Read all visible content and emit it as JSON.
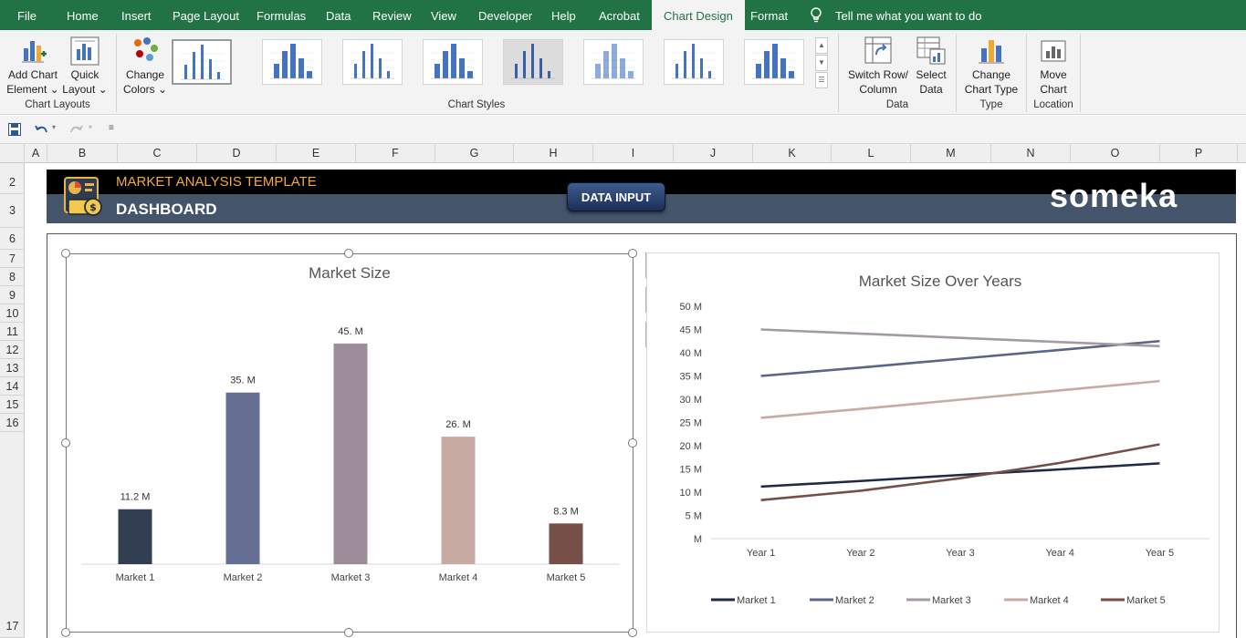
{
  "tabs": [
    {
      "label": "File"
    },
    {
      "label": "Home"
    },
    {
      "label": "Insert"
    },
    {
      "label": "Page Layout"
    },
    {
      "label": "Formulas"
    },
    {
      "label": "Data"
    },
    {
      "label": "Review"
    },
    {
      "label": "View"
    },
    {
      "label": "Developer"
    },
    {
      "label": "Help"
    },
    {
      "label": "Acrobat"
    },
    {
      "label": "Chart Design"
    },
    {
      "label": "Format"
    }
  ],
  "tell_me": "Tell me what you want to do",
  "ribbon": {
    "add_chart_element": [
      "Add Chart",
      "Element"
    ],
    "quick_layout": [
      "Quick",
      "Layout"
    ],
    "change_colors": [
      "Change",
      "Colors"
    ],
    "switch_row_col": [
      "Switch Row/",
      "Column"
    ],
    "select_data": [
      "Select",
      "Data"
    ],
    "change_chart_type": [
      "Change",
      "Chart Type"
    ],
    "move_chart": [
      "Move",
      "Chart"
    ],
    "groups": {
      "chart_layouts": "Chart Layouts",
      "chart_styles": "Chart Styles",
      "data": "Data",
      "type": "Type",
      "location": "Location"
    }
  },
  "columns": [
    "A",
    "B",
    "C",
    "D",
    "E",
    "F",
    "G",
    "H",
    "I",
    "J",
    "K",
    "L",
    "M",
    "N",
    "O",
    "P"
  ],
  "rows": [
    "2",
    "3",
    "6",
    "7",
    "8",
    "9",
    "10",
    "11",
    "12",
    "13",
    "14",
    "15",
    "16",
    "17"
  ],
  "dashboard": {
    "title": "MARKET ANALYSIS TEMPLATE",
    "subtitle": "DASHBOARD",
    "data_input_button": "DATA INPUT",
    "brand": "someka"
  },
  "colors": {
    "excel_green": "#217346",
    "banner_slate": "#44546a",
    "title_orange": "#f4a93a"
  },
  "chart_data": [
    {
      "type": "bar",
      "title": "Market Size",
      "categories": [
        "Market 1",
        "Market 2",
        "Market 3",
        "Market 4",
        "Market 5"
      ],
      "values": [
        11.2,
        35,
        45,
        26,
        8.3
      ],
      "data_labels": [
        "11.2 M",
        "35. M",
        "45. M",
        "26. M",
        "8.3 M"
      ],
      "colors": [
        "#323e51",
        "#656f94",
        "#9d8c9b",
        "#c7aba3",
        "#754f48"
      ],
      "ylim": [
        0,
        50
      ],
      "grid": false
    },
    {
      "type": "line",
      "title": "Market Size Over Years",
      "categories": [
        "Year 1",
        "Year 2",
        "Year 3",
        "Year 4",
        "Year 5"
      ],
      "ylim": [
        0,
        50
      ],
      "yticks": [
        "M",
        "5 M",
        "10 M",
        "15 M",
        "20 M",
        "25 M",
        "30 M",
        "35 M",
        "40 M",
        "45 M",
        "50 M"
      ],
      "legend": "bottom",
      "series": [
        {
          "name": "Market 1",
          "color": "#1f2a44",
          "values": [
            11.2,
            12.4,
            13.7,
            14.9,
            16.2
          ]
        },
        {
          "name": "Market 2",
          "color": "#5c6487",
          "values": [
            35,
            36.8,
            38.7,
            40.6,
            42.5
          ]
        },
        {
          "name": "Market 3",
          "color": "#a49aa5",
          "values": [
            45,
            44.1,
            43.2,
            42.3,
            41.4
          ]
        },
        {
          "name": "Market 4",
          "color": "#c7aba3",
          "values": [
            26,
            27.9,
            29.9,
            31.9,
            33.9
          ]
        },
        {
          "name": "Market 5",
          "color": "#754f48",
          "values": [
            8.3,
            10.3,
            13,
            16.3,
            20.3
          ]
        }
      ]
    }
  ]
}
